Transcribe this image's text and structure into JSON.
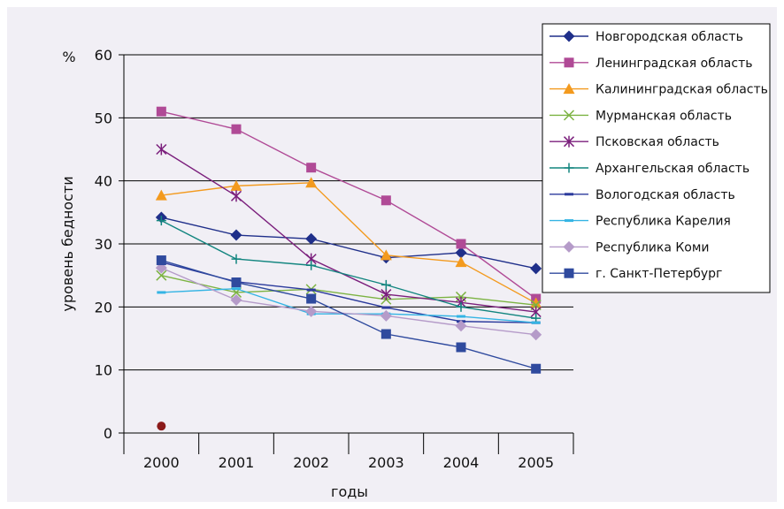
{
  "colors": {
    "panel_bg": "#f1eff5",
    "grid": "#000000",
    "legend_bg": "#ffffff"
  },
  "chart_data": {
    "type": "line",
    "title": "",
    "xlabel": "годы",
    "ylabel": "уровень бедности",
    "y_unit_label": "%",
    "categories": [
      "2000",
      "2001",
      "2002",
      "2003",
      "2004",
      "2005"
    ],
    "ylim": [
      0,
      60
    ],
    "yticks": [
      0,
      10,
      20,
      30,
      40,
      50,
      60
    ],
    "grid": true,
    "legend_position": "top-right",
    "series": [
      {
        "name": "Новгородская область",
        "color": "#1f2f8a",
        "marker": "diamond",
        "values": [
          34.2,
          31.4,
          30.8,
          27.8,
          28.6,
          26.1
        ]
      },
      {
        "name": "Ленинградская область",
        "color": "#b04a96",
        "marker": "square",
        "values": [
          51.0,
          48.2,
          42.1,
          36.9,
          30.0,
          21.3
        ]
      },
      {
        "name": "Калининградская область",
        "color": "#f39a1e",
        "marker": "triangle",
        "values": [
          37.7,
          39.2,
          39.7,
          28.2,
          27.1,
          20.6
        ]
      },
      {
        "name": "Мурманская область",
        "color": "#7cb342",
        "marker": "x",
        "values": [
          25.0,
          22.3,
          22.8,
          21.2,
          21.6,
          20.3
        ]
      },
      {
        "name": "Псковская область",
        "color": "#7b1f7c",
        "marker": "star",
        "values": [
          45.0,
          37.6,
          27.6,
          22.0,
          20.7,
          19.2
        ]
      },
      {
        "name": "Архангельская область",
        "color": "#12857f",
        "marker": "plus",
        "values": [
          33.7,
          27.6,
          26.6,
          23.5,
          20.0,
          18.2
        ]
      },
      {
        "name": "Вологодская область",
        "color": "#2b3a9c",
        "marker": "dash",
        "values": [
          27.1,
          24.0,
          22.7,
          19.9,
          17.7,
          17.5
        ]
      },
      {
        "name": "Республика Карелия",
        "color": "#34b4e4",
        "marker": "dash",
        "values": [
          22.3,
          22.9,
          18.9,
          18.9,
          18.5,
          17.5
        ]
      },
      {
        "name": "Республика Коми",
        "color": "#b59bc9",
        "marker": "diamond",
        "values": [
          26.2,
          21.1,
          19.3,
          18.6,
          17.0,
          15.6
        ]
      },
      {
        "name": "г. Санкт-Петербург",
        "color": "#2f4a9e",
        "marker": "square",
        "values": [
          27.4,
          23.9,
          21.3,
          15.7,
          13.6,
          10.2
        ]
      }
    ],
    "annotations": [
      {
        "type": "point",
        "x": "2000",
        "y": 1.1,
        "color": "#8b1a1a"
      }
    ]
  }
}
